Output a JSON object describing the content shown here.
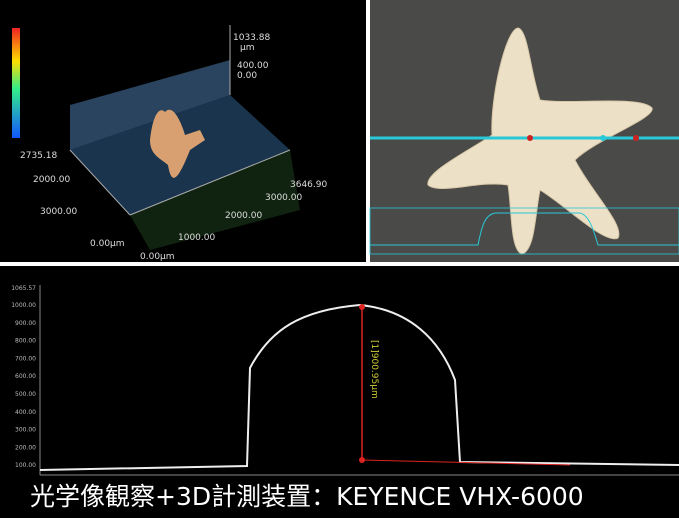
{
  "caption": "光学像観察+3D計測装置：KEYENCE VHX-6000",
  "plot3d": {
    "labels": {
      "z_max": "1033.88",
      "z_unit": "µm",
      "z_mid": "400.00",
      "z_min": "0.00",
      "y_far": "2735.18",
      "y_2000": "2000.00",
      "y_3000": "3000.00",
      "x_1000": "1000.00",
      "origin_y": "0.00µm",
      "origin_x": "0.00µm",
      "x_max": "3646.90",
      "x_3000": "3000.00",
      "x_2000": "2000.00"
    }
  },
  "profile": {
    "yticks": [
      "1065.57",
      "1000.00",
      "900.00",
      "800.00",
      "700.00",
      "600.00",
      "500.00",
      "400.00",
      "300.00",
      "200.00",
      "100.00"
    ],
    "measurement": "[1]900.95µm"
  }
}
